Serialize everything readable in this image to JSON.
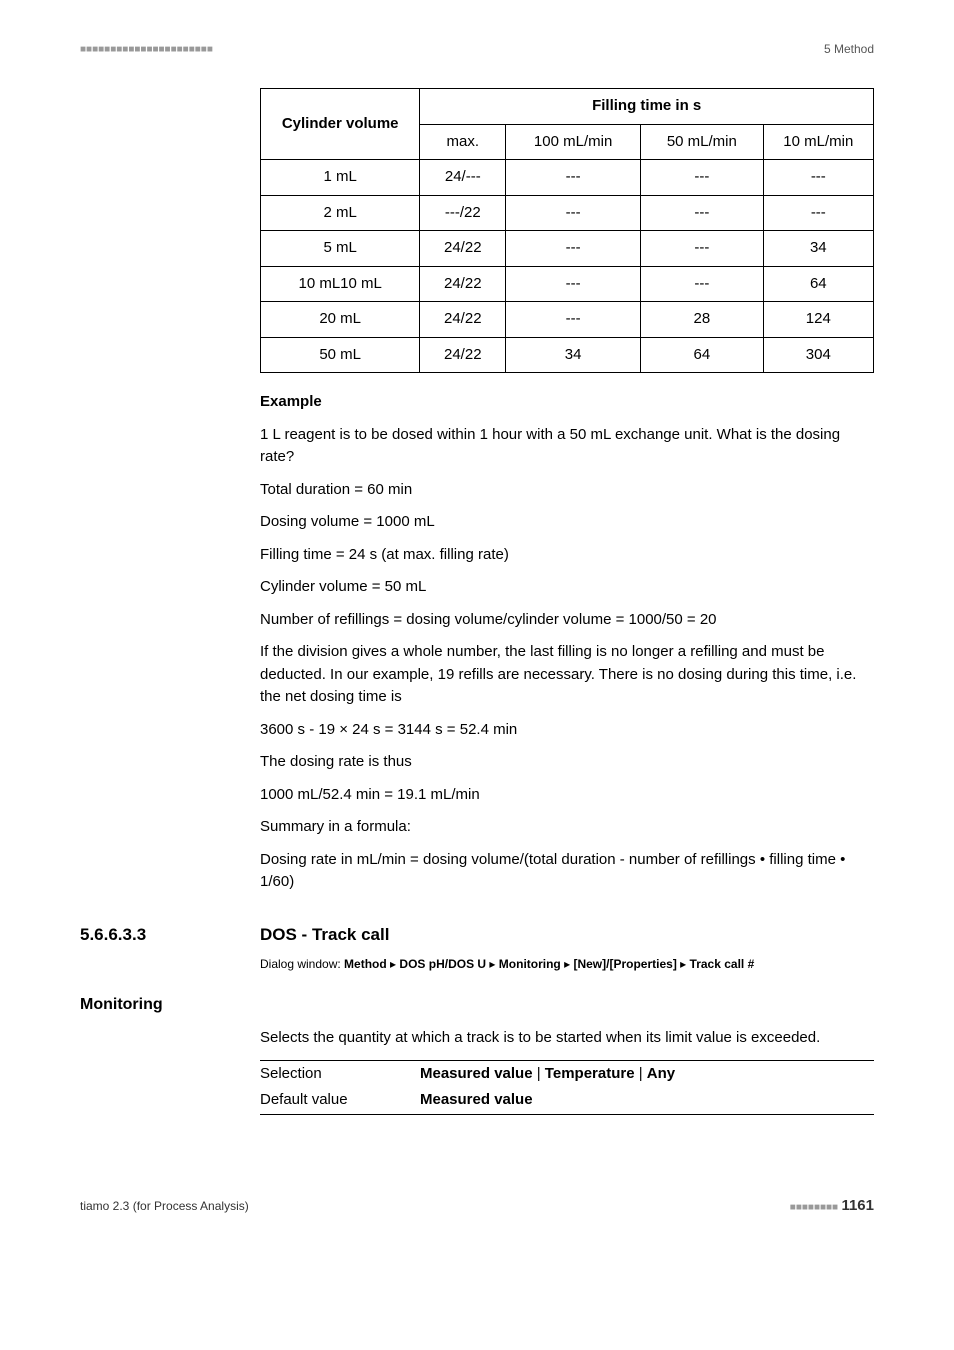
{
  "header": {
    "left_rule": "■■■■■■■■■■■■■■■■■■■■■■",
    "right_text": "5 Method"
  },
  "filling_table": {
    "type": "table",
    "header_left": "Cylinder volume",
    "header_right": "Filling time in s",
    "sub_headers": [
      "max.",
      "100 mL/min",
      "50 mL/min",
      "10 mL/min"
    ],
    "rows": [
      [
        "1 mL",
        "24/---",
        "---",
        "---",
        "---"
      ],
      [
        "2 mL",
        "---/22",
        "---",
        "---",
        "---"
      ],
      [
        "5 mL",
        "24/22",
        "---",
        "---",
        "34"
      ],
      [
        "10 mL10 mL",
        "24/22",
        "---",
        "---",
        "64"
      ],
      [
        "20 mL",
        "24/22",
        "---",
        "28",
        "124"
      ],
      [
        "50 mL",
        "24/22",
        "34",
        "64",
        "304"
      ]
    ],
    "col_widths": [
      "26%",
      "14%",
      "22%",
      "20%",
      "18%"
    ],
    "border_color": "#000000",
    "font_size": 15
  },
  "example": {
    "heading": "Example",
    "lines": [
      "1 L reagent is to be dosed within 1 hour with a 50 mL exchange unit. What is the dosing rate?",
      "Total duration = 60 min",
      "Dosing volume = 1000 mL",
      "Filling time = 24 s (at max. filling rate)",
      "Cylinder volume = 50 mL",
      "Number of refillings = dosing volume/cylinder volume = 1000/50 = 20",
      "If the division gives a whole number, the last filling is no longer a refilling and must be deducted. In our example, 19 refills are necessary. There is no dosing during this time, i.e. the net dosing time is",
      "3600 s - 19 × 24 s = 3144 s = 52.4 min",
      "The dosing rate is thus",
      "1000 mL/52.4 min = 19.1 mL/min",
      "Summary in a formula:",
      "Dosing rate in mL/min = dosing volume/(total duration - number of refillings • filling time • 1/60)"
    ]
  },
  "section": {
    "number": "5.6.6.3.3",
    "title": "DOS - Track call",
    "dialog_prefix": "Dialog window: ",
    "dialog_parts": [
      "Method",
      "DOS pH/DOS U",
      "Monitoring",
      "[New]/[Properties]",
      "Track call #"
    ],
    "dialog_sep": " ▸ "
  },
  "monitoring": {
    "label": "Monitoring",
    "para": "Selects the quantity at which a track is to be started when its limit value is exceeded.",
    "selection_label": "Selection",
    "selection_value_parts": [
      "Measured value",
      "Temperature",
      "Any"
    ],
    "selection_sep": " | ",
    "default_label": "Default value",
    "default_value": "Measured value"
  },
  "footer": {
    "left": "tiamo 2.3 (for Process Analysis)",
    "right_rule": "■■■■■■■■",
    "page": "1161"
  }
}
